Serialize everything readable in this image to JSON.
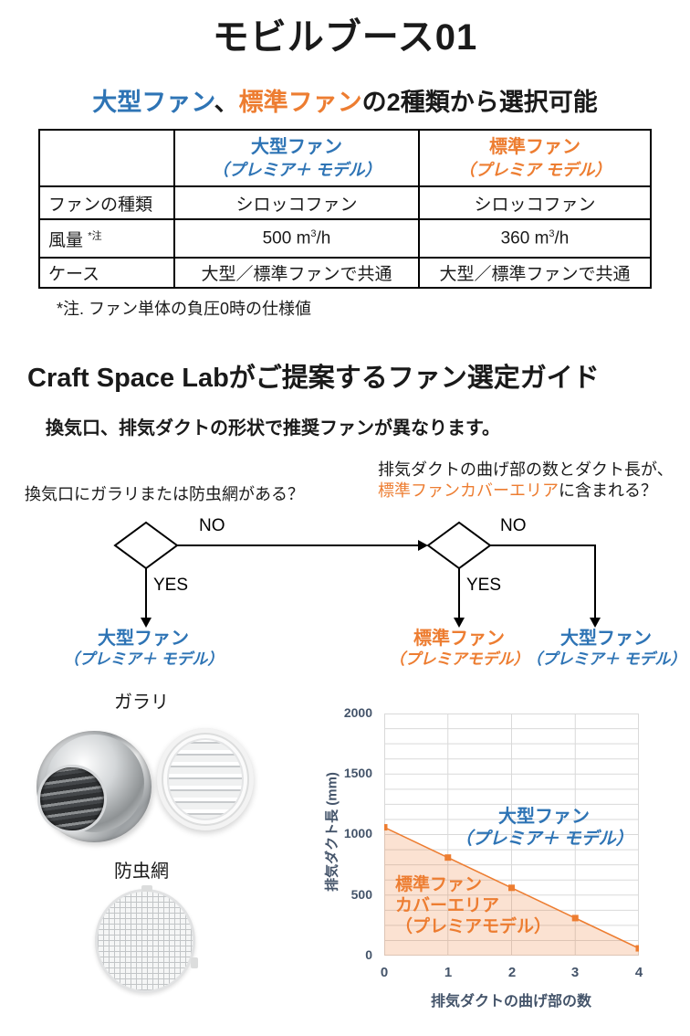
{
  "page": {
    "title": "モビルブース01"
  },
  "subtitle": {
    "large_fan": "大型ファン",
    "separator": "、",
    "standard_fan": "標準ファン",
    "rest": "の2種類から選択可能"
  },
  "table": {
    "col_large": {
      "name": "大型ファン",
      "model": "（プレミア＋ モデル）"
    },
    "col_standard": {
      "name": "標準ファン",
      "model": "（プレミア モデル）"
    },
    "rows": {
      "type": {
        "label": "ファンの種類",
        "large": "シロッコファン",
        "standard": "シロッコファン"
      },
      "airflow": {
        "label": "風量",
        "note_mark": "*注",
        "large_prefix": "500 m",
        "large_sup": "3",
        "large_suffix": "/h",
        "standard_prefix": "360 m",
        "standard_sup": "3",
        "standard_suffix": "/h"
      },
      "case": {
        "label": "ケース",
        "large": "大型／標準ファンで共通",
        "standard": "大型／標準ファンで共通"
      }
    },
    "footnote": "*注. ファン単体の負圧0時の仕様値"
  },
  "guide": {
    "title": "Craft Space Labがご提案するファン選定ガイド",
    "subtitle": "換気口、排気ダクトの形状で推奨ファンが異なります。"
  },
  "flowchart": {
    "q1": "換気口にガラリまたは防虫網がある？",
    "q2_line1": "排気ダクトの曲げ部の数とダクト長が、",
    "q2_highlight": "標準ファンカバーエリア",
    "q2_rest": "に含まれる？",
    "no1": "NO",
    "yes1": "YES",
    "no2": "NO",
    "yes2": "YES",
    "result_large1": {
      "name": "大型ファン",
      "model": "（プレミア＋ モデル）"
    },
    "result_standard": {
      "name": "標準ファン",
      "model": "（プレミアモデル）"
    },
    "result_large2": {
      "name": "大型ファン",
      "model": "（プレミア＋ モデル）"
    }
  },
  "photos": {
    "louver_label": "ガラリ",
    "insect_net_label": "防虫網"
  },
  "chart_data": {
    "type": "area",
    "x": [
      0,
      1,
      2,
      3,
      4
    ],
    "series": [
      {
        "name": "標準ファンカバーエリア（プレミアモデル）",
        "values": [
          1060,
          810,
          560,
          310,
          60
        ]
      }
    ],
    "title": "",
    "xlabel": "排気ダクトの曲げ部の数",
    "ylabel": "排気ダクト長 (mm)",
    "xlim": [
      0,
      4
    ],
    "ylim": [
      0,
      2000
    ],
    "x_ticks": [
      0,
      1,
      2,
      3,
      4
    ],
    "y_ticks": [
      0,
      500,
      1000,
      1500,
      2000
    ],
    "y_grid_step": 125,
    "grid": true,
    "legend": "none",
    "line_color": "#ED7D31",
    "fill_color": "rgba(237,125,49,0.22)",
    "marker": "square",
    "annotations": [
      {
        "lines": [
          "大型ファン",
          "（プレミア＋ モデル）"
        ],
        "color": "#2E74B5",
        "position": "upper-right"
      },
      {
        "lines": [
          "標準ファン",
          "カバーエリア",
          "（プレミアモデル）"
        ],
        "color": "#ED7D31",
        "position": "inside-area"
      }
    ]
  },
  "colors": {
    "blue": "#2E74B5",
    "orange": "#ED7D31",
    "axis_text": "#44546A",
    "grid": "#D9D9D9"
  }
}
